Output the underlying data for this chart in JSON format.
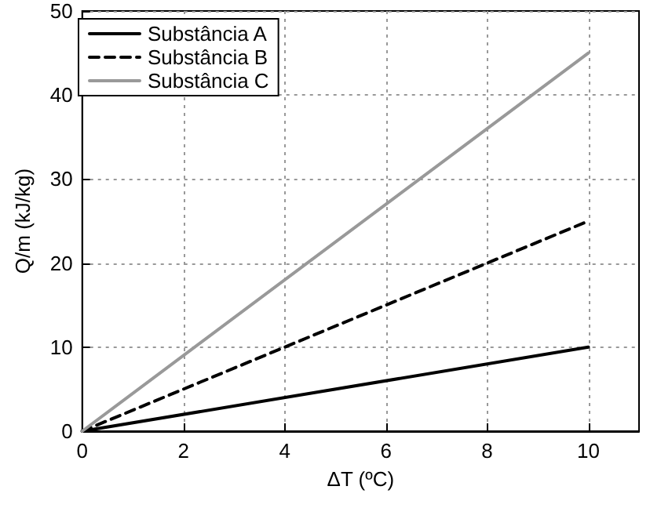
{
  "chart_data": {
    "type": "line",
    "xlabel": "ΔT (ºC)",
    "ylabel": "Q/m (kJ/kg)",
    "x": [
      0,
      10
    ],
    "series": [
      {
        "name": "Substância A",
        "color": "#000000",
        "line_style": "solid",
        "values": [
          0,
          10
        ]
      },
      {
        "name": "Substância B",
        "color": "#000000",
        "line_style": "dashed",
        "values": [
          0,
          25
        ]
      },
      {
        "name": "Substância C",
        "color": "#999999",
        "line_style": "solid",
        "values": [
          0,
          45
        ]
      }
    ],
    "xlim": [
      0,
      11
    ],
    "xticks": [
      0,
      2,
      4,
      6,
      8,
      10
    ],
    "ylim": [
      0,
      50
    ],
    "yticks": [
      0,
      10,
      20,
      30,
      40,
      50
    ],
    "grid": true,
    "legend": "top left",
    "marker": "none"
  }
}
